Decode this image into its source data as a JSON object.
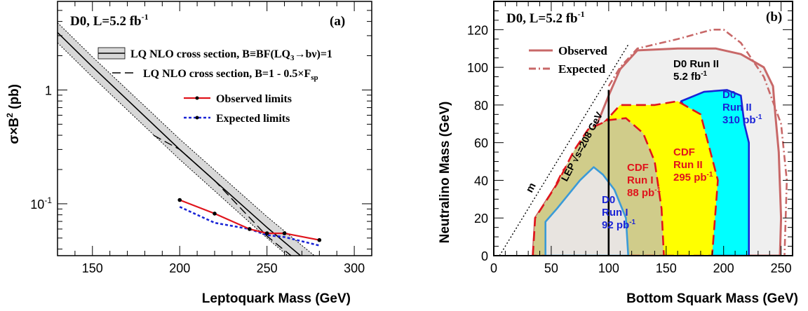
{
  "chart_data": [
    {
      "type": "line",
      "panel_label": "(a)",
      "experiment_text": "D0, L=5.2 fb",
      "experiment_sup": "-1",
      "xlabel": "Leptoquark Mass (GeV)",
      "ylabel": "σ×B",
      "ylabel_sup": "2",
      "ylabel_tail": " (pb)",
      "xlim": [
        130,
        310
      ],
      "ylim": [
        0.035,
        6
      ],
      "yscale": "log",
      "xticks": [
        150,
        200,
        250,
        300
      ],
      "yticks": [
        {
          "value": 1,
          "label": "1"
        },
        {
          "value": 0.1,
          "label": "10",
          "sup": "-1"
        }
      ],
      "legend": [
        {
          "type": "band",
          "text": "LQ NLO cross section, B≡BF(LQ",
          "sub": "3",
          "tail": "→bν)=1"
        },
        {
          "type": "dashed",
          "text": "LQ NLO cross section, B=1 - 0.5×F",
          "sub": "sp",
          "tail": ""
        },
        {
          "type": "observed",
          "text": "Observed limits",
          "color": "#e0141c"
        },
        {
          "type": "expected",
          "text": "Expected limits",
          "color": "#1a24d6"
        }
      ],
      "series": {
        "theory_central": [
          [
            130,
            3.2
          ],
          [
            150,
            1.6
          ],
          [
            200,
            0.3
          ],
          [
            250,
            0.062
          ],
          [
            300,
            0.014
          ]
        ],
        "theory_upper": [
          [
            130,
            3.9
          ],
          [
            150,
            1.95
          ],
          [
            200,
            0.37
          ],
          [
            250,
            0.077
          ],
          [
            300,
            0.018
          ]
        ],
        "theory_lower": [
          [
            130,
            2.6
          ],
          [
            150,
            1.3
          ],
          [
            200,
            0.245
          ],
          [
            250,
            0.05
          ],
          [
            300,
            0.011
          ]
        ],
        "theory_sp": [
          [
            185,
            0.4
          ],
          [
            200,
            0.3
          ],
          [
            220,
            0.16
          ],
          [
            250,
            0.052
          ],
          [
            280,
            0.022
          ],
          [
            295,
            0.013
          ]
        ],
        "observed": [
          [
            200,
            0.108
          ],
          [
            220,
            0.082
          ],
          [
            240,
            0.06
          ],
          [
            250,
            0.055
          ],
          [
            260,
            0.055
          ],
          [
            280,
            0.048
          ]
        ],
        "expected": [
          [
            200,
            0.094
          ],
          [
            220,
            0.068
          ],
          [
            240,
            0.06
          ],
          [
            250,
            0.053
          ],
          [
            260,
            0.051
          ],
          [
            280,
            0.043
          ]
        ]
      }
    },
    {
      "type": "area",
      "panel_label": "(b)",
      "experiment_text": "D0, L=5.2 fb",
      "experiment_sup": "-1",
      "xlabel": "Bottom Squark Mass (GeV)",
      "ylabel": "Neutralino Mass (GeV)",
      "xlim": [
        0,
        260
      ],
      "ylim": [
        0,
        135
      ],
      "xticks": [
        0,
        50,
        100,
        150,
        200,
        250
      ],
      "yticks": [
        0,
        20,
        40,
        60,
        80,
        100,
        120
      ],
      "legend": [
        {
          "type": "observed",
          "text": "Observed",
          "color": "#c86868"
        },
        {
          "type": "expected",
          "text": "Expected",
          "color": "#c86868"
        }
      ],
      "regions": [
        {
          "name": "D0 Run II",
          "lines": [
            "D0 Run II",
            "5.2 fb"
          ],
          "sup": "-1",
          "fill": "#efefef",
          "edge": "#c86868",
          "boundary": [
            [
              34,
              0
            ],
            [
              36,
              20
            ],
            [
              55,
              38
            ],
            [
              75,
              55
            ],
            [
              90,
              70
            ],
            [
              100,
              85
            ],
            [
              110,
              99
            ],
            [
              125,
              109
            ],
            [
              160,
              110
            ],
            [
              193,
              110
            ],
            [
              215,
              107
            ],
            [
              235,
              100
            ],
            [
              243,
              90
            ],
            [
              245,
              75
            ],
            [
              248,
              55
            ],
            [
              250,
              20
            ],
            [
              249,
              0
            ]
          ]
        },
        {
          "name": "D0 Run II 310",
          "lines": [
            "D0",
            "Run II",
            "310 pb"
          ],
          "sup": "-1",
          "fill": "#00ffff",
          "edge": "#1a24d6",
          "label_color": "#1a24d6",
          "boundary": [
            [
              175,
              0
            ],
            [
              175,
              70
            ],
            [
              163,
              82
            ],
            [
              183,
              87
            ],
            [
              203,
              88
            ],
            [
              215,
              85
            ],
            [
              218,
              70
            ],
            [
              222,
              60
            ],
            [
              222,
              0
            ]
          ]
        },
        {
          "name": "CDF Run II",
          "lines": [
            "CDF",
            "Run II",
            "295 pb"
          ],
          "sup": "-1",
          "fill": "#ffff00",
          "edge": "#e0141c",
          "label_color": "#e0141c",
          "boundary": [
            [
              48,
              0
            ],
            [
              48,
              30
            ],
            [
              60,
              45
            ],
            [
              80,
              60
            ],
            [
              95,
              70
            ],
            [
              110,
              80
            ],
            [
              140,
              80
            ],
            [
              160,
              82
            ],
            [
              180,
              75
            ],
            [
              195,
              40
            ],
            [
              190,
              0
            ]
          ]
        },
        {
          "name": "CDF Run I",
          "lines": [
            "CDF",
            "Run I",
            "88 pb"
          ],
          "sup": "-1",
          "fill": "#d0cc8a",
          "edge": "#e0141c",
          "label_color": "#e0141c",
          "boundary": [
            [
              34,
              0
            ],
            [
              36,
              20
            ],
            [
              55,
              38
            ],
            [
              70,
              56
            ],
            [
              82,
              67
            ],
            [
              100,
              72
            ],
            [
              115,
              73
            ],
            [
              130,
              65
            ],
            [
              140,
              50
            ],
            [
              146,
              25
            ],
            [
              148,
              0
            ]
          ]
        },
        {
          "name": "D0 Run I",
          "lines": [
            "D0",
            "Run I",
            "92 pb"
          ],
          "sup": "-1",
          "fill": "#e8e4e0",
          "edge": "#3a9ad8",
          "label_color": "#1a24d6",
          "boundary": [
            [
              45,
              0
            ],
            [
              45,
              18
            ],
            [
              55,
              25
            ],
            [
              75,
              40
            ],
            [
              87,
              47
            ],
            [
              95,
              43
            ],
            [
              105,
              35
            ],
            [
              115,
              20
            ],
            [
              117,
              0
            ]
          ]
        }
      ],
      "expected_curve": [
        [
          100,
          90
        ],
        [
          110,
          100
        ],
        [
          125,
          110
        ],
        [
          160,
          115
        ],
        [
          190,
          120
        ],
        [
          200,
          120
        ],
        [
          215,
          113
        ],
        [
          235,
          95
        ],
        [
          250,
          70
        ],
        [
          255,
          40
        ],
        [
          253,
          0
        ]
      ],
      "lep_line": [
        [
          100,
          0
        ],
        [
          100,
          88
        ]
      ],
      "kinematic_line": [
        [
          5,
          0
        ],
        [
          93,
          88
        ],
        [
          117,
          112
        ]
      ],
      "kinematic_label": "m",
      "lep_label": "LEP √s=208 GeV"
    }
  ]
}
